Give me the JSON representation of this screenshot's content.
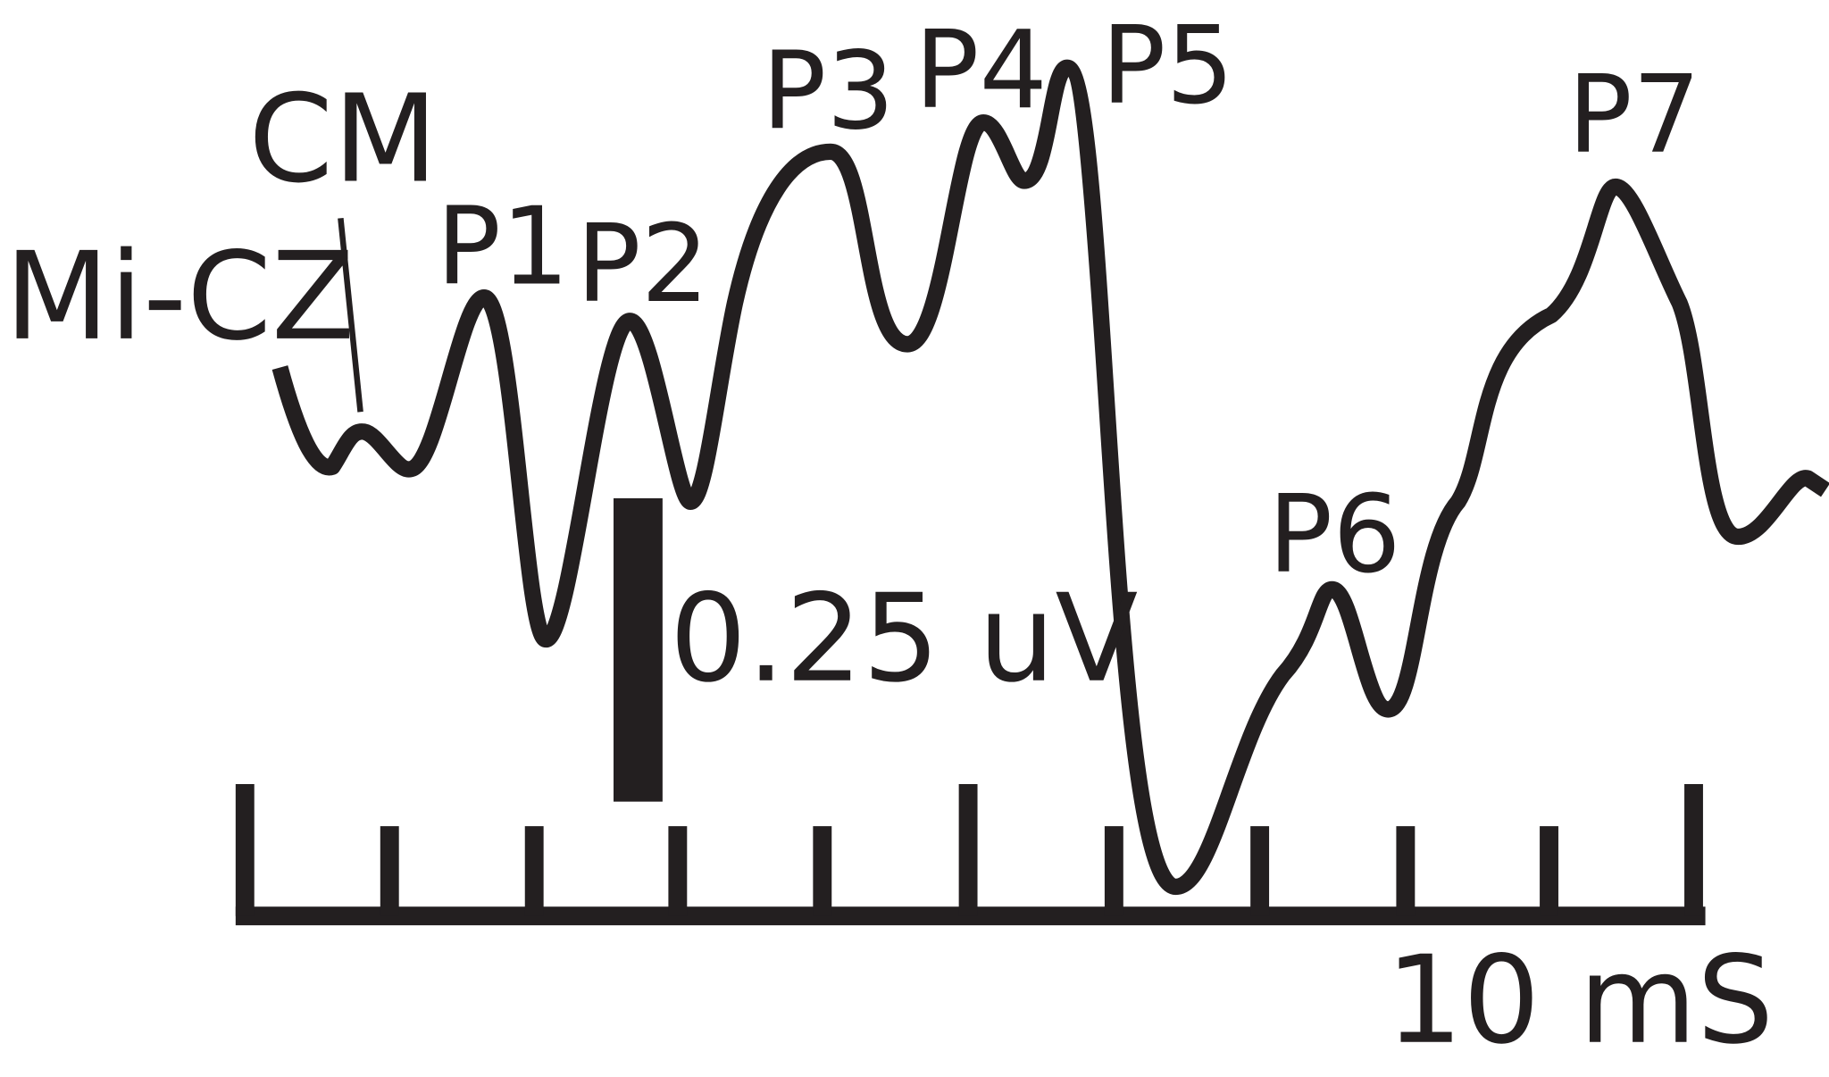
{
  "trace_label": "Mi-CZ",
  "waves": {
    "cm": "CM",
    "p1": "P1",
    "p2": "P2",
    "p3": "P3",
    "p4": "P4",
    "p5": "P5",
    "p6": "P6",
    "p7": "P7"
  },
  "amplitude_scale": "0.25 uV",
  "time_scale": "10 mS"
}
